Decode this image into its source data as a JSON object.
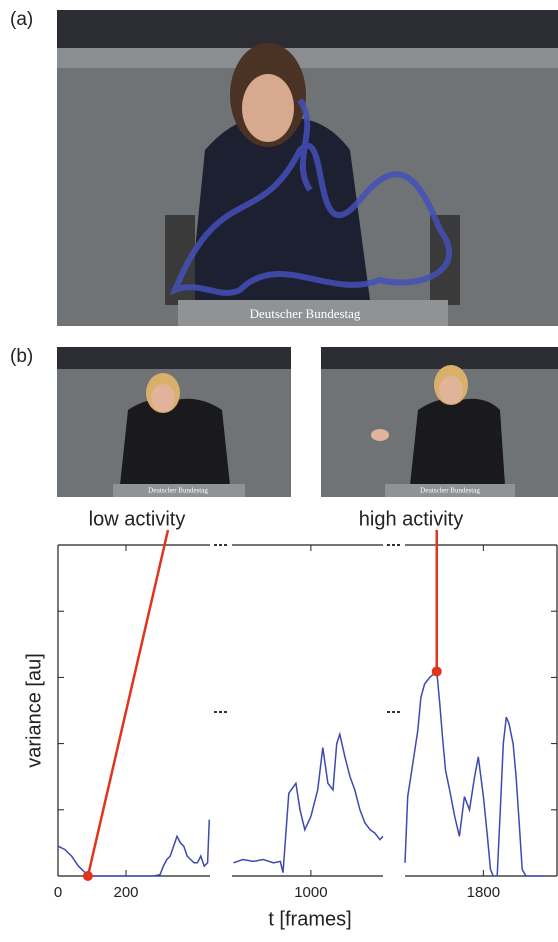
{
  "panels": {
    "a": {
      "label": "(a)",
      "sign": "Deutscher Bundestag"
    },
    "b": {
      "label": "(b)",
      "sign_left": "Deutscher Bundestag",
      "sign_right": "Deutscher Bundestag"
    }
  },
  "chart_data": [
    {
      "type": "line",
      "ylabel": "variance [au]",
      "color": "#3f49b0",
      "xlim": [
        0,
        447
      ],
      "xticks": [
        0,
        200
      ],
      "ylim": [
        0,
        5
      ],
      "yticks": [
        0,
        1,
        2,
        3,
        4,
        5
      ],
      "x": [
        0,
        20,
        40,
        60,
        80,
        88,
        120,
        160,
        200,
        240,
        280,
        300,
        310,
        320,
        330,
        340,
        350,
        360,
        370,
        380,
        390,
        400,
        410,
        420,
        430,
        440,
        445
      ],
      "values": [
        0.45,
        0.4,
        0.3,
        0.15,
        0.05,
        0,
        0,
        0,
        0,
        0,
        0,
        0.02,
        0.15,
        0.25,
        0.3,
        0.45,
        0.6,
        0.5,
        0.45,
        0.3,
        0.25,
        0.2,
        0.2,
        0.3,
        0.15,
        0.2,
        0.85
      ],
      "annotations": [
        {
          "text": "low activity",
          "x": 88,
          "y": 0
        }
      ]
    },
    {
      "type": "line",
      "xlabel": "t [frames]",
      "color": "#3f49b0",
      "xlim": [
        768,
        1212
      ],
      "xticks": [
        {
          "value": 1000,
          "label": "1000"
        }
      ],
      "x": [
        772,
        800,
        830,
        860,
        890,
        910,
        918,
        935,
        956,
        968,
        982,
        1000,
        1020,
        1035,
        1050,
        1065,
        1076,
        1085,
        1100,
        1115,
        1129,
        1144,
        1159,
        1174,
        1188,
        1203,
        1212
      ],
      "values": [
        0.2,
        0.25,
        0.22,
        0.25,
        0.2,
        0.22,
        0.05,
        1.25,
        1.4,
        1.0,
        0.7,
        0.9,
        1.3,
        1.94,
        1.4,
        1.3,
        2.0,
        2.14,
        1.8,
        1.5,
        1.3,
        1.0,
        0.8,
        0.7,
        0.65,
        0.55,
        0.6
      ]
    },
    {
      "type": "line",
      "color": "#3f49b0",
      "xlim": [
        1568,
        2018
      ],
      "xticks": [
        {
          "value": 1800,
          "label": "1800"
        }
      ],
      "x": [
        1568,
        1576,
        1588,
        1606,
        1615,
        1626,
        1641,
        1653,
        1662,
        1671,
        1679,
        1688,
        1700,
        1715,
        1729,
        1744,
        1759,
        1774,
        1785,
        1800,
        1812,
        1821,
        1829,
        1841,
        1850,
        1859,
        1868,
        1876,
        1888,
        1897,
        1906,
        1915,
        1926,
        1950,
        1979
      ],
      "values": [
        0.2,
        1.2,
        1.6,
        2.2,
        2.7,
        2.9,
        3.0,
        3.05,
        3.09,
        2.6,
        2.1,
        1.6,
        1.3,
        0.9,
        0.6,
        1.2,
        1.0,
        1.5,
        1.8,
        1.2,
        0.6,
        0.1,
        0,
        0,
        1.0,
        2.0,
        2.4,
        2.3,
        2.0,
        1.5,
        0.8,
        0.1,
        0,
        0,
        0
      ],
      "annotations": [
        {
          "text": "high activity",
          "x": 1662,
          "y": 3.09
        }
      ]
    }
  ]
}
